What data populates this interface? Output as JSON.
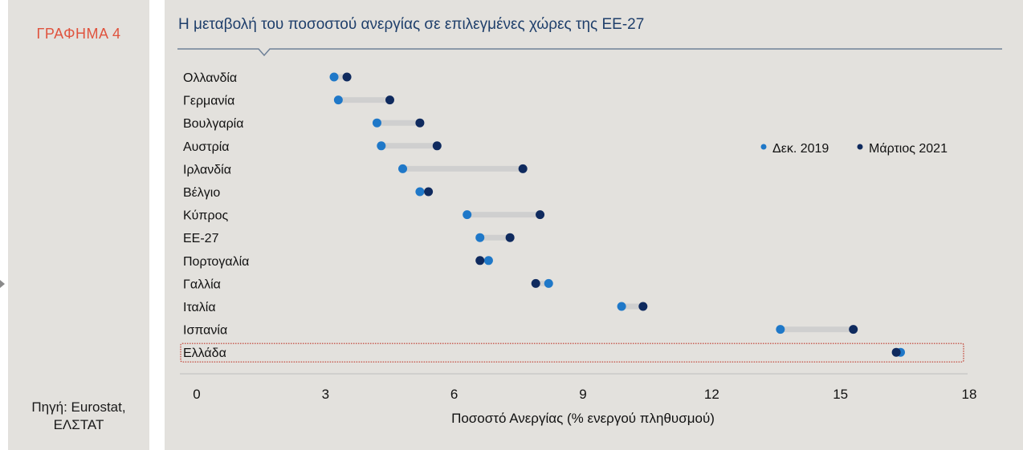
{
  "side_label": "ΓΡΑΦΗΜΑ 4",
  "source_line1": "Πηγή: Eurostat,",
  "source_line2": "ΕΛΣΤΑΤ",
  "colors": {
    "dec2019": "#1f78c8",
    "mar2021": "#0f2a5e",
    "connector": "#cfcfcf",
    "highlight": "#c0392b"
  },
  "chart_data": {
    "type": "dumbbell",
    "title": "Η μεταβολή του ποσοστού ανεργίας σε επιλεγμένες χώρες της ΕΕ-27",
    "xlabel": "Ποσοστό Ανεργίας (% ενεργού πληθυσμού)",
    "xlim": [
      0,
      18
    ],
    "xticks": [
      0,
      3,
      6,
      9,
      12,
      15,
      18
    ],
    "legend": [
      {
        "name": "Δεκ. 2019",
        "key": "dec2019"
      },
      {
        "name": "Μάρτιος 2021",
        "key": "mar2021"
      }
    ],
    "legend_position": "right",
    "highlight": "Ελλάδα",
    "categories": [
      "Ολλανδία",
      "Γερμανία",
      "Βουλγαρία",
      "Αυστρία",
      "Ιρλανδία",
      "Βέλγιο",
      "Κύπρος",
      "ΕΕ-27",
      "Πορτογαλία",
      "Γαλλία",
      "Ιταλία",
      "Ισπανία",
      "Ελλάδα"
    ],
    "series": [
      {
        "name": "Δεκ. 2019",
        "values": [
          3.2,
          3.3,
          4.2,
          4.3,
          4.8,
          5.2,
          6.3,
          6.6,
          6.8,
          8.2,
          9.9,
          13.6,
          16.4
        ]
      },
      {
        "name": "Μάρτιος 2021",
        "values": [
          3.5,
          4.5,
          5.2,
          5.6,
          7.6,
          5.4,
          8.0,
          7.3,
          6.6,
          7.9,
          10.4,
          15.3,
          16.3
        ]
      }
    ]
  }
}
